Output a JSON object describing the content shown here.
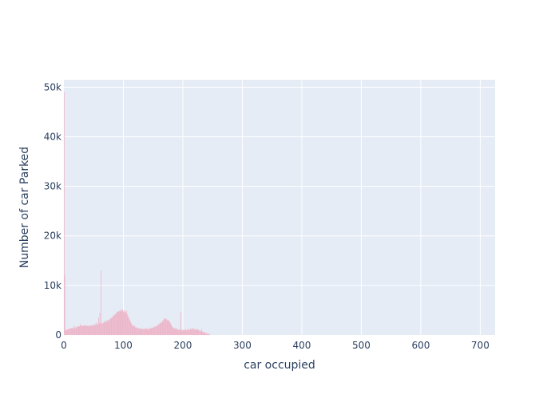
{
  "chart_data": {
    "type": "bar",
    "title": "",
    "xlabel": "car occupied",
    "ylabel": "Number of car Parked",
    "xlim": [
      0,
      725
    ],
    "ylim": [
      0,
      51500
    ],
    "grid": true,
    "bar_color": "#e9a8be",
    "background": "#e5ecf6",
    "x_ticks": [
      0,
      100,
      200,
      300,
      400,
      500,
      600,
      700
    ],
    "x_tick_labels": [
      "0",
      "100",
      "200",
      "300",
      "400",
      "500",
      "600",
      "700"
    ],
    "y_ticks": [
      0,
      10000,
      20000,
      30000,
      40000,
      50000
    ],
    "y_tick_labels": [
      "0",
      "10k",
      "20k",
      "30k",
      "40k",
      "50k"
    ],
    "bin_start": 0,
    "bin_width": 1,
    "values": [
      49000,
      12000,
      900,
      1000,
      1000,
      1100,
      1100,
      1200,
      1200,
      1300,
      1300,
      1200,
      1400,
      1300,
      1500,
      1400,
      1300,
      1900,
      1400,
      1500,
      1600,
      1500,
      1700,
      1600,
      1700,
      1800,
      1700,
      2200,
      1900,
      1800,
      1800,
      1900,
      1800,
      1900,
      2000,
      1800,
      1900,
      1900,
      1800,
      1900,
      1900,
      1700,
      1800,
      1900,
      1800,
      2000,
      1900,
      1800,
      1900,
      2000,
      2100,
      1900,
      2200,
      2000,
      2500,
      2100,
      2000,
      2300,
      3500,
      2400,
      4500,
      2300,
      13000,
      2300,
      2200,
      2400,
      2500,
      2600,
      2400,
      2900,
      2700,
      2800,
      2600,
      3000,
      2900,
      2800,
      3200,
      3100,
      3400,
      3300,
      3600,
      3500,
      3900,
      3800,
      4100,
      4000,
      4300,
      4200,
      4500,
      4600,
      4700,
      4800,
      4600,
      4900,
      4700,
      5100,
      5000,
      4800,
      5200,
      4900,
      4600,
      4900,
      4500,
      4700,
      4400,
      4900,
      4200,
      3900,
      3600,
      3300,
      3100,
      2800,
      2600,
      2300,
      2100,
      1900,
      1800,
      1700,
      2000,
      1600,
      1500,
      1600,
      1400,
      1500,
      1300,
      1400,
      1200,
      1300,
      1400,
      1200,
      1300,
      1200,
      1100,
      1300,
      1200,
      1100,
      1300,
      1200,
      1400,
      1100,
      1200,
      1300,
      1100,
      1200,
      1300,
      1400,
      1200,
      1500,
      1300,
      1400,
      1600,
      1500,
      1700,
      1600,
      1800,
      1700,
      1900,
      1800,
      2000,
      2200,
      2100,
      2400,
      2300,
      2500,
      2700,
      2600,
      3000,
      2900,
      3200,
      3400,
      3100,
      3300,
      3200,
      3000,
      2800,
      3100,
      2900,
      2700,
      2500,
      2300,
      2000,
      1800,
      1600,
      1500,
      1400,
      1300,
      1200,
      1300,
      1500,
      1100,
      1200,
      1100,
      1000,
      1100,
      1000,
      1000,
      4600,
      1100,
      900,
      1000,
      1000,
      1100,
      900,
      1000,
      1200,
      1000,
      900,
      1100,
      1000,
      1200,
      1100,
      1000,
      1300,
      1100,
      1200,
      1000,
      1300,
      1400,
      1100,
      1200,
      1000,
      1300,
      1100,
      900,
      1200,
      1000,
      1100,
      800,
      900,
      700,
      800,
      1200,
      600,
      700,
      500,
      600,
      400,
      500,
      300,
      400,
      300,
      200,
      300,
      200,
      100,
      100
    ]
  }
}
